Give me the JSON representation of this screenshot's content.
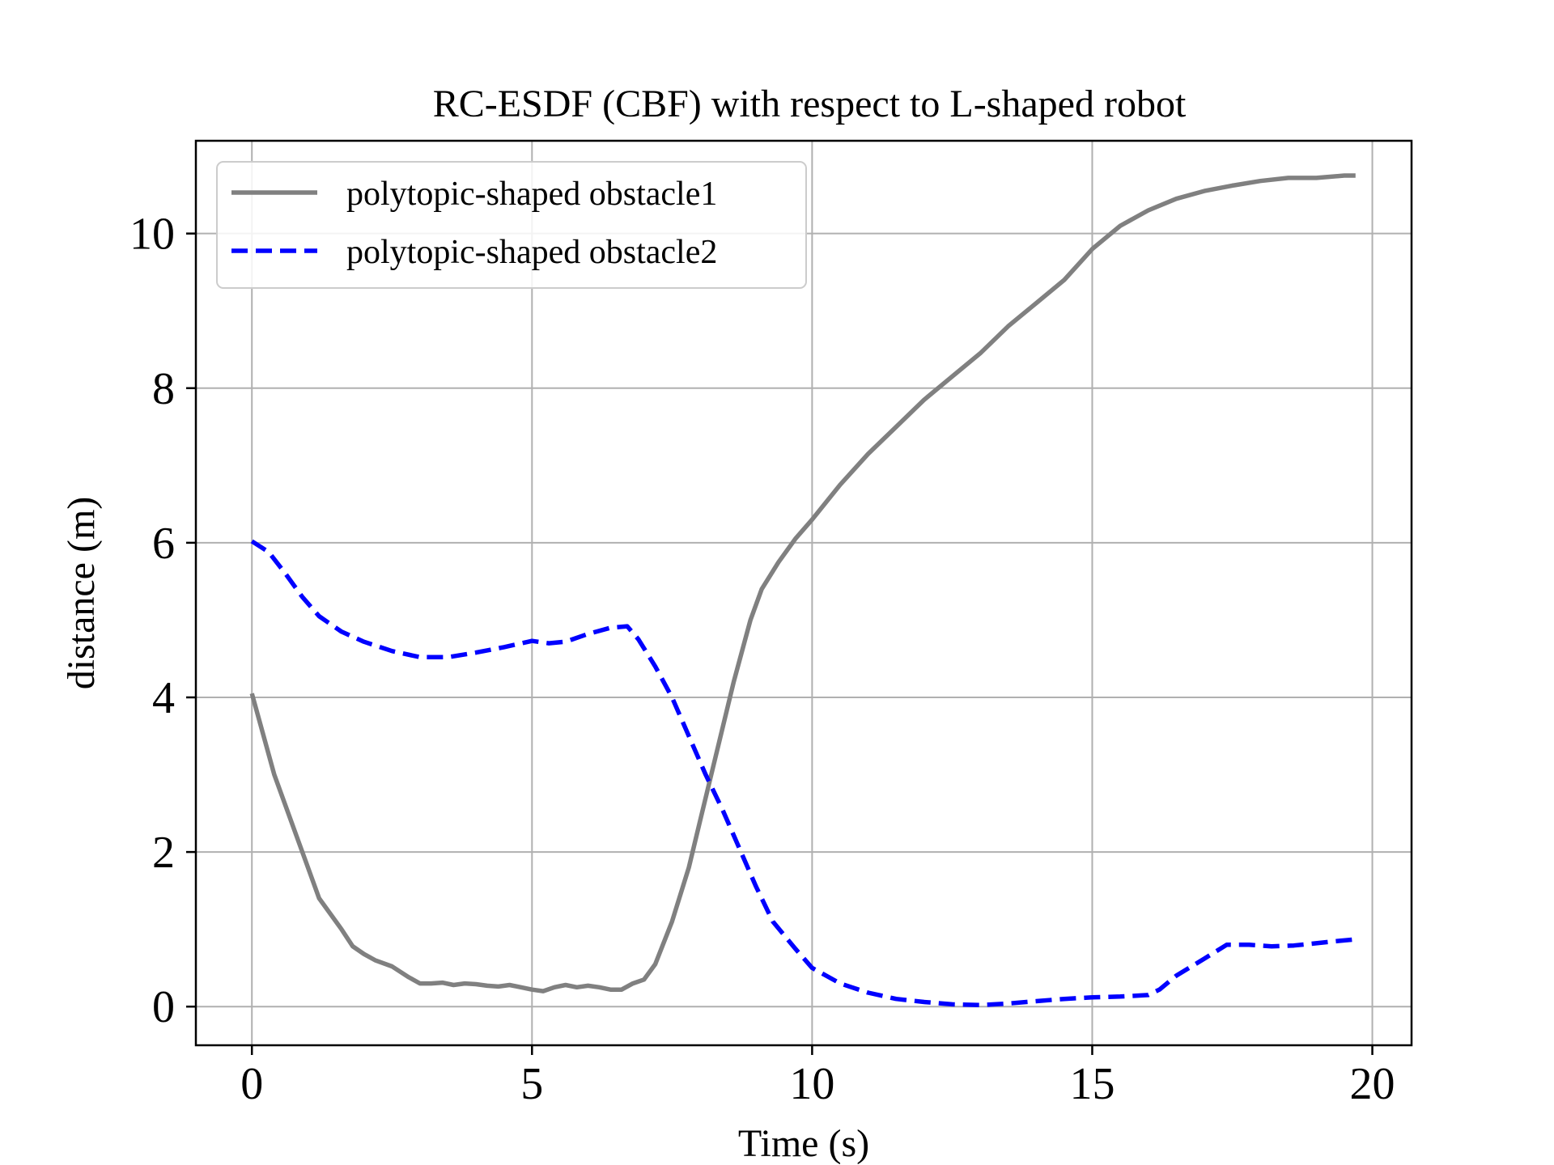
{
  "chart_data": {
    "type": "line",
    "title": "RC-ESDF (CBF) with respect to L-shaped robot",
    "xlabel": "Time (s)",
    "ylabel": "distance (m)",
    "xlim": [
      -1,
      20.7
    ],
    "ylim": [
      -0.5,
      11.2
    ],
    "xticks": [
      0,
      5,
      10,
      15,
      20
    ],
    "yticks": [
      0,
      2,
      4,
      6,
      8,
      10
    ],
    "xtick_labels": [
      "0",
      "5",
      "10",
      "15",
      "20"
    ],
    "ytick_labels": [
      "0",
      "2",
      "4",
      "6",
      "8",
      "10"
    ],
    "grid": true,
    "legend_position": "top-left",
    "series": [
      {
        "name": "polytopic-shaped obstacle1",
        "color": "#808080",
        "style": "solid",
        "x": [
          0,
          0.4,
          0.8,
          1.2,
          1.6,
          1.8,
          2.0,
          2.2,
          2.5,
          2.8,
          3.0,
          3.2,
          3.4,
          3.6,
          3.8,
          4.0,
          4.2,
          4.4,
          4.6,
          4.8,
          5.0,
          5.2,
          5.4,
          5.6,
          5.8,
          6.0,
          6.2,
          6.4,
          6.6,
          6.8,
          7.0,
          7.2,
          7.5,
          7.8,
          8.0,
          8.3,
          8.6,
          8.9,
          9.1,
          9.4,
          9.7,
          10.0,
          10.5,
          11.0,
          11.5,
          12.0,
          12.5,
          13.0,
          13.5,
          14.0,
          14.5,
          15.0,
          15.5,
          16.0,
          16.5,
          17.0,
          17.5,
          18.0,
          18.5,
          19.0,
          19.5,
          19.7
        ],
        "y": [
          4.05,
          3.0,
          2.2,
          1.4,
          1.0,
          0.78,
          0.68,
          0.6,
          0.52,
          0.38,
          0.3,
          0.3,
          0.31,
          0.28,
          0.3,
          0.29,
          0.27,
          0.26,
          0.28,
          0.25,
          0.22,
          0.2,
          0.25,
          0.28,
          0.25,
          0.27,
          0.25,
          0.22,
          0.22,
          0.3,
          0.35,
          0.55,
          1.1,
          1.8,
          2.4,
          3.3,
          4.2,
          5.0,
          5.4,
          5.75,
          6.05,
          6.3,
          6.75,
          7.15,
          7.5,
          7.85,
          8.15,
          8.45,
          8.8,
          9.1,
          9.4,
          9.8,
          10.1,
          10.3,
          10.45,
          10.55,
          10.62,
          10.68,
          10.72,
          10.72,
          10.75,
          10.75
        ]
      },
      {
        "name": "polytopic-shaped obstacle2",
        "color": "#0000ff",
        "style": "dashed",
        "x": [
          0,
          0.3,
          0.6,
          0.9,
          1.2,
          1.6,
          2.0,
          2.5,
          3.0,
          3.5,
          4.0,
          4.5,
          5.0,
          5.3,
          5.6,
          6.0,
          6.4,
          6.7,
          6.9,
          7.2,
          7.5,
          7.8,
          8.1,
          8.4,
          8.7,
          9.0,
          9.3,
          9.7,
          10.0,
          10.5,
          11.0,
          11.5,
          12.0,
          12.5,
          13.0,
          13.5,
          14.0,
          14.5,
          15.0,
          15.5,
          16.0,
          16.2,
          16.5,
          17.0,
          17.4,
          17.8,
          18.2,
          18.6,
          19.0,
          19.4,
          19.7
        ],
        "y": [
          6.02,
          5.88,
          5.6,
          5.3,
          5.05,
          4.85,
          4.72,
          4.6,
          4.52,
          4.52,
          4.58,
          4.65,
          4.73,
          4.7,
          4.72,
          4.82,
          4.9,
          4.92,
          4.75,
          4.4,
          4.0,
          3.5,
          3.0,
          2.55,
          2.05,
          1.55,
          1.1,
          0.75,
          0.5,
          0.3,
          0.18,
          0.1,
          0.06,
          0.03,
          0.02,
          0.04,
          0.07,
          0.1,
          0.12,
          0.13,
          0.15,
          0.22,
          0.4,
          0.62,
          0.8,
          0.8,
          0.78,
          0.79,
          0.82,
          0.85,
          0.87
        ]
      }
    ]
  }
}
